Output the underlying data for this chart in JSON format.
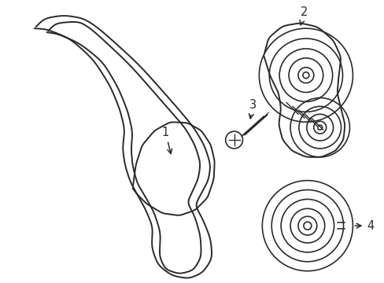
{
  "bg_color": "#ffffff",
  "line_color": "#2a2a2a",
  "line_width": 1.4,
  "label_fontsize": 10.5
}
